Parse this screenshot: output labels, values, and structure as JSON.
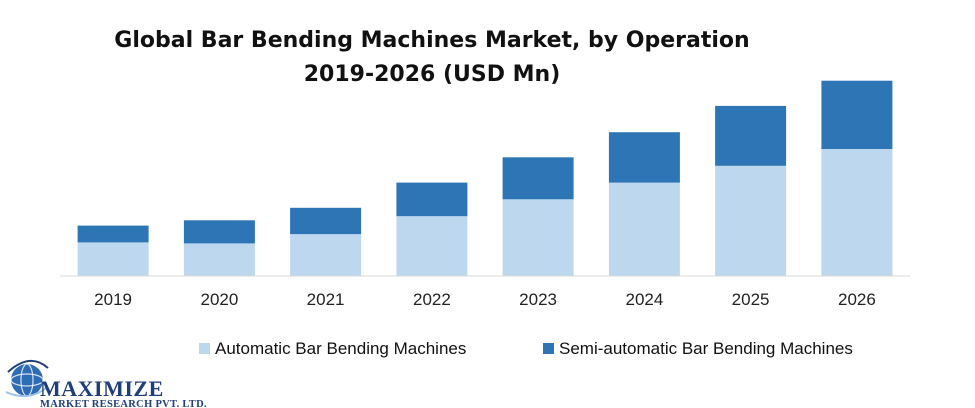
{
  "chart_data": {
    "type": "bar",
    "stacked": true,
    "title_line1": "Global Bar Bending Machines Market, by Operation",
    "title_line2": "2019-2026 (USD Mn)",
    "xlabel": "",
    "ylabel": "",
    "categories": [
      "2019",
      "2020",
      "2021",
      "2022",
      "2023",
      "2024",
      "2025",
      "2026"
    ],
    "series": [
      {
        "name": "Automatic Bar Bending Machines",
        "color": "#bdd7ee",
        "values": [
          32,
          31,
          40,
          57,
          73,
          89,
          105,
          121
        ]
      },
      {
        "name": "Semi-automatic Bar Bending Machines",
        "color": "#2e75b6",
        "values": [
          16,
          22,
          25,
          32,
          40,
          48,
          57,
          65
        ]
      }
    ],
    "ylim": [
      0,
      200
    ],
    "grid": false,
    "legend_position": "bottom"
  },
  "logo": {
    "main": "MAXIMIZE",
    "sub": "MARKET RESEARCH PVT. LTD.",
    "colors": {
      "text": "#1f3e7a",
      "globe": "#2e6db4"
    }
  }
}
